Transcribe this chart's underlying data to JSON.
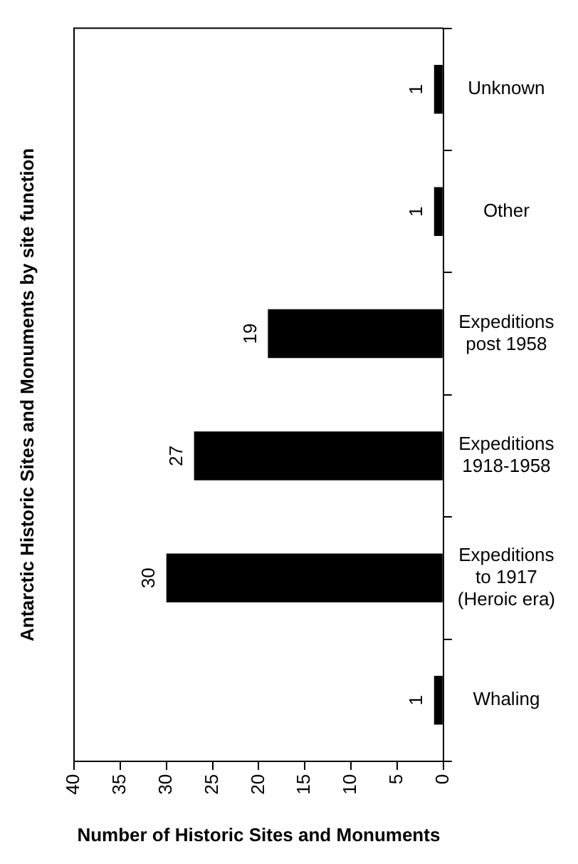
{
  "chart_data": {
    "type": "bar",
    "orientation": "horizontal",
    "ylabel": "Antarctic Historic Sites and Monuments by site function",
    "xlabel": "Number of Historic Sites and Monuments",
    "categories": [
      "Unknown",
      "Other",
      "Expeditions post 1958",
      "Expeditions 1918-1958",
      "Expeditions to 1917 (Heroic era)",
      "Whaling"
    ],
    "values": [
      1,
      1,
      19,
      27,
      30,
      1
    ],
    "color": "#000000",
    "xlim": [
      40,
      0
    ],
    "xticks": [
      40,
      35,
      30,
      25,
      20,
      15,
      10,
      5,
      0
    ],
    "grid": false,
    "legend": false,
    "data_labels": true
  }
}
